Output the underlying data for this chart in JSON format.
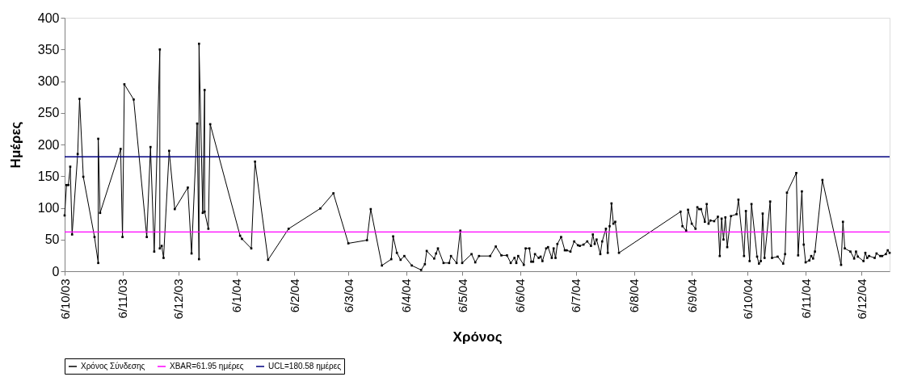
{
  "chart_data": {
    "type": "line",
    "xlabel": "Χρόνος",
    "ylabel": "Ημέρες",
    "x": [
      "2003-10-06",
      "2003-10-07",
      "2003-10-08",
      "2003-10-09",
      "2003-10-10",
      "2003-10-13",
      "2003-10-14",
      "2003-10-16",
      "2003-10-22",
      "2003-10-24",
      "2003-10-24",
      "2003-10-25",
      "2003-11-05",
      "2003-11-06",
      "2003-11-07",
      "2003-11-12",
      "2003-11-19",
      "2003-11-21",
      "2003-11-23",
      "2003-11-26",
      "2003-11-26",
      "2003-11-27",
      "2003-11-28",
      "2003-12-01",
      "2003-12-04",
      "2003-12-11",
      "2003-12-13",
      "2003-12-16",
      "2003-12-17",
      "2003-12-17",
      "2003-12-19",
      "2003-12-20",
      "2003-12-20",
      "2003-12-22",
      "2003-12-23",
      "2004-01-08",
      "2004-01-09",
      "2004-01-14",
      "2004-01-16",
      "2004-01-23",
      "2004-02-03",
      "2004-02-20",
      "2004-02-27",
      "2004-03-06",
      "2004-03-16",
      "2004-03-18",
      "2004-03-24",
      "2004-03-29",
      "2004-03-30",
      "2004-04-01",
      "2004-04-03",
      "2004-04-05",
      "2004-04-09",
      "2004-04-14",
      "2004-04-16",
      "2004-04-17",
      "2004-04-21",
      "2004-04-22",
      "2004-04-23",
      "2004-04-26",
      "2004-04-29",
      "2004-04-30",
      "2004-05-03",
      "2004-05-05",
      "2004-05-06",
      "2004-05-11",
      "2004-05-13",
      "2004-05-15",
      "2004-05-21",
      "2004-05-24",
      "2004-05-27",
      "2004-05-30",
      "2004-06-01",
      "2004-06-03",
      "2004-06-04",
      "2004-06-05",
      "2004-06-08",
      "2004-06-09",
      "2004-06-11",
      "2004-06-12",
      "2004-06-13",
      "2004-06-14",
      "2004-06-16",
      "2004-06-17",
      "2004-06-18",
      "2004-06-20",
      "2004-06-21",
      "2004-06-23",
      "2004-06-24",
      "2004-06-25",
      "2004-06-26",
      "2004-06-28",
      "2004-06-30",
      "2004-07-01",
      "2004-07-03",
      "2004-07-05",
      "2004-07-07",
      "2004-07-08",
      "2004-07-10",
      "2004-07-12",
      "2004-07-14",
      "2004-07-15",
      "2004-07-16",
      "2004-07-17",
      "2004-07-19",
      "2004-07-20",
      "2004-07-22",
      "2004-07-23",
      "2004-07-24",
      "2004-07-25",
      "2004-07-26",
      "2004-07-27",
      "2004-07-29",
      "2004-08-31",
      "2004-09-01",
      "2004-09-03",
      "2004-09-04",
      "2004-09-06",
      "2004-09-08",
      "2004-09-09",
      "2004-09-10",
      "2004-09-11",
      "2004-09-13",
      "2004-09-14",
      "2004-09-15",
      "2004-09-16",
      "2004-09-18",
      "2004-09-20",
      "2004-09-21",
      "2004-09-22",
      "2004-09-23",
      "2004-09-24",
      "2004-09-25",
      "2004-09-27",
      "2004-09-30",
      "2004-10-01",
      "2004-10-04",
      "2004-10-05",
      "2004-10-07",
      "2004-10-08",
      "2004-10-11",
      "2004-10-12",
      "2004-10-13",
      "2004-10-14",
      "2004-10-15",
      "2004-10-18",
      "2004-10-19",
      "2004-10-22",
      "2004-10-25",
      "2004-10-26",
      "2004-10-27",
      "2004-11-01",
      "2004-11-02",
      "2004-11-04",
      "2004-11-05",
      "2004-11-06",
      "2004-11-08",
      "2004-11-09",
      "2004-11-10",
      "2004-11-11",
      "2004-11-15",
      "2004-11-25",
      "2004-11-26",
      "2004-11-27",
      "2004-11-30",
      "2004-12-02",
      "2004-12-03",
      "2004-12-04",
      "2004-12-07",
      "2004-12-08",
      "2004-12-09",
      "2004-12-10",
      "2004-12-13",
      "2004-12-14",
      "2004-12-16",
      "2004-12-17",
      "2004-12-19",
      "2004-12-20",
      "2004-12-21"
    ],
    "series": [
      {
        "name": "Χρόνος Σύνδεσης",
        "color": "#000000",
        "values": [
          88,
          136,
          136,
          165,
          58,
          185,
          272,
          149,
          54,
          13,
          209,
          92,
          193,
          54,
          295,
          271,
          54,
          196,
          31,
          350,
          36,
          40,
          21,
          190,
          98,
          132,
          28,
          233,
          19,
          359,
          92,
          286,
          94,
          67,
          232,
          56,
          51,
          36,
          173,
          18,
          67,
          99,
          123,
          44,
          49,
          98,
          9,
          19,
          55,
          29,
          18,
          24,
          9,
          2,
          11,
          32,
          20,
          28,
          36,
          13,
          13,
          24,
          13,
          64,
          13,
          27,
          14,
          24,
          24,
          39,
          25,
          25,
          13,
          21,
          13,
          24,
          10,
          36,
          36,
          15,
          15,
          27,
          21,
          23,
          16,
          36,
          38,
          21,
          36,
          21,
          43,
          54,
          33,
          33,
          31,
          47,
          41,
          40,
          42,
          47,
          40,
          58,
          43,
          50,
          27,
          47,
          67,
          29,
          71,
          107,
          75,
          78,
          29,
          94,
          71,
          64,
          97,
          75,
          67,
          101,
          98,
          98,
          78,
          106,
          75,
          80,
          79,
          86,
          24,
          83,
          50,
          85,
          38,
          87,
          90,
          113,
          24,
          95,
          16,
          106,
          23,
          12,
          16,
          91,
          21,
          110,
          21,
          23,
          12,
          27,
          124,
          155,
          25,
          126,
          42,
          14,
          17,
          24,
          20,
          31,
          144,
          10,
          78,
          36,
          31,
          20,
          31,
          23,
          16,
          29,
          21,
          24,
          21,
          28,
          24,
          24,
          27,
          33,
          29
        ]
      }
    ],
    "ref_lines": [
      {
        "axis": "y",
        "value": 61.95,
        "label": "XBAR=61.95 ημέρες",
        "color": "#ff00ff"
      },
      {
        "axis": "y",
        "value": 180.58,
        "label": "UCL=180.58 ημέρες",
        "color": "#000080"
      }
    ],
    "xlim": [
      "2003-10-06",
      "2004-12-21"
    ],
    "xticks": [
      {
        "value": "2003-10-06",
        "label": "6/10/03"
      },
      {
        "value": "2003-11-06",
        "label": "6/11/03"
      },
      {
        "value": "2003-12-06",
        "label": "6/12/03"
      },
      {
        "value": "2004-01-06",
        "label": "6/1/04"
      },
      {
        "value": "2004-02-06",
        "label": "6/2/04"
      },
      {
        "value": "2004-03-06",
        "label": "6/3/04"
      },
      {
        "value": "2004-04-06",
        "label": "6/4/04"
      },
      {
        "value": "2004-05-06",
        "label": "6/5/04"
      },
      {
        "value": "2004-06-06",
        "label": "6/6/04"
      },
      {
        "value": "2004-07-06",
        "label": "6/7/04"
      },
      {
        "value": "2004-08-06",
        "label": "6/8/04"
      },
      {
        "value": "2004-09-06",
        "label": "6/9/04"
      },
      {
        "value": "2004-10-06",
        "label": "6/10/04"
      },
      {
        "value": "2004-11-06",
        "label": "6/11/04"
      },
      {
        "value": "2004-12-06",
        "label": "6/12/04"
      }
    ],
    "ylim": [
      0,
      400
    ],
    "yticks": [
      0,
      50,
      100,
      150,
      200,
      250,
      300,
      350,
      400
    ],
    "grid": false,
    "legend": "bottom",
    "marker": "square",
    "line_style": "solid"
  }
}
